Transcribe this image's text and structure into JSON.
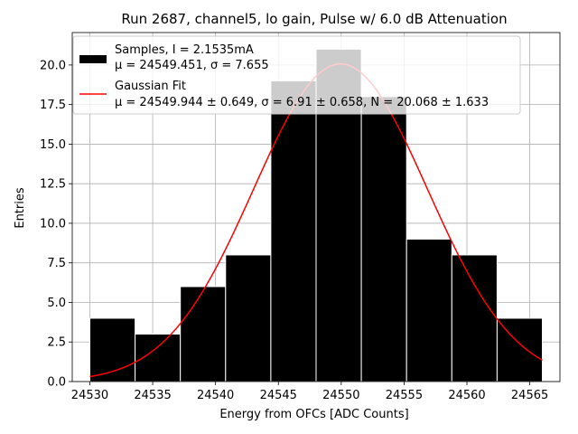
{
  "chart_data": {
    "type": "bar",
    "title": "Run 2687, channel5, lo gain, Pulse w/ 6.0 dB Attenuation",
    "xlabel": "Energy from OFCs [ADC Counts]",
    "ylabel": "Entries",
    "xlim": [
      24528.6,
      24567.4
    ],
    "ylim": [
      0,
      22.05
    ],
    "xticks": [
      24530,
      24535,
      24540,
      24545,
      24550,
      24555,
      24560,
      24565
    ],
    "yticks": [
      0.0,
      2.5,
      5.0,
      7.5,
      10.0,
      12.5,
      15.0,
      17.5,
      20.0
    ],
    "ytick_labels": [
      "0.0",
      "2.5",
      "5.0",
      "7.5",
      "10.0",
      "12.5",
      "15.0",
      "17.5",
      "20.0"
    ],
    "grid": true,
    "legend_position": "upper-left",
    "histogram": {
      "name_line1": "Samples, I = 2.1535mA",
      "name_line2": "μ = 24549.451, σ = 7.655",
      "color": "#000000",
      "bin_edges": [
        24530.0,
        24533.6,
        24537.2,
        24540.8,
        24544.4,
        24548.0,
        24551.6,
        24555.2,
        24558.8,
        24562.4,
        24566.0
      ],
      "counts": [
        4,
        3,
        6,
        8,
        19,
        21,
        18,
        9,
        8,
        4
      ]
    },
    "fit": {
      "name_line1": "Gaussian Fit",
      "name_line2": "μ = 24549.944 ± 0.649, σ = 6.91 ± 0.658, N = 20.068 ± 1.633",
      "color": "#ff0000",
      "mu": 24549.944,
      "sigma": 6.91,
      "N": 20.068
    }
  }
}
